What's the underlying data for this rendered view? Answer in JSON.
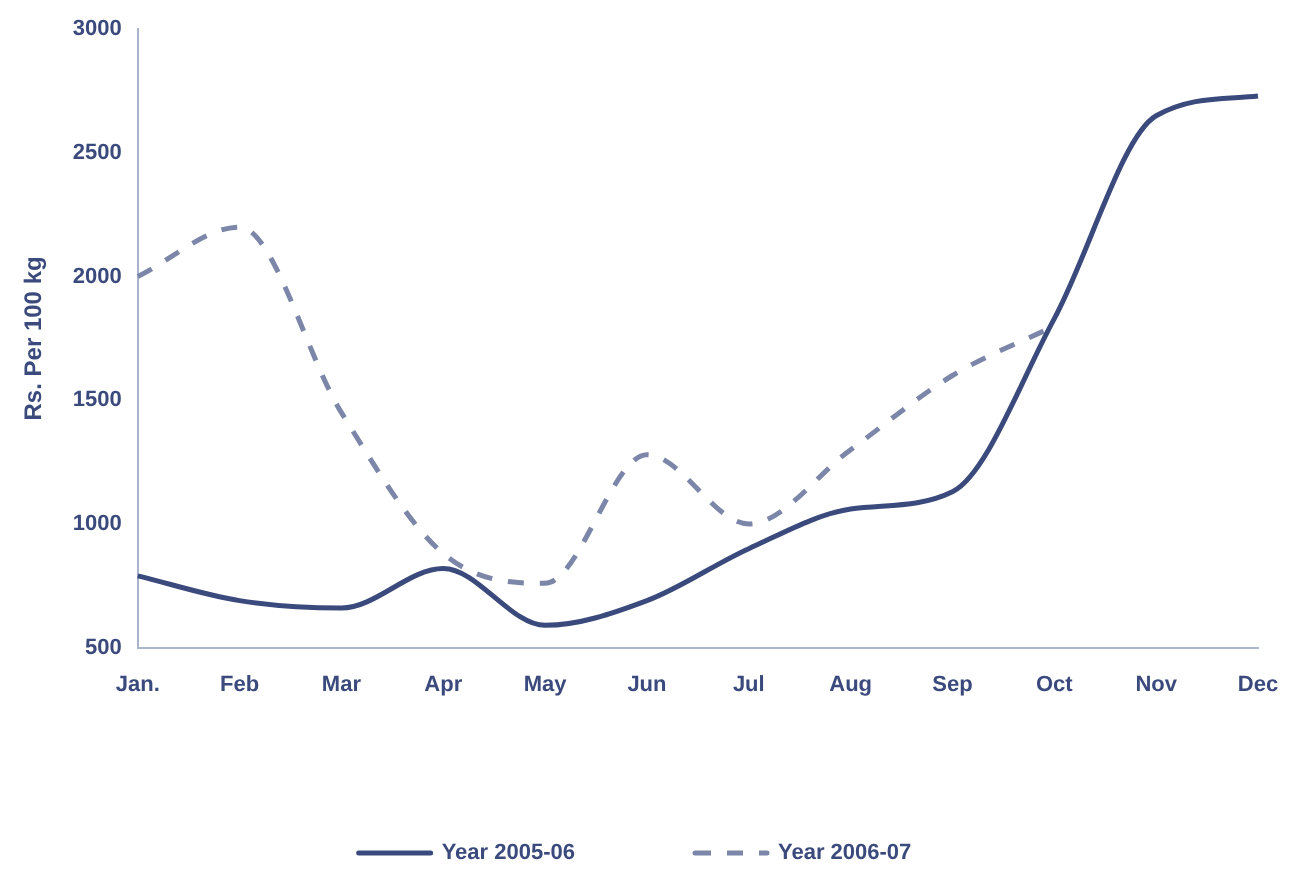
{
  "chart_data": {
    "type": "line",
    "ylabel": "Rs. Per 100 kg",
    "categories": [
      "Jan.",
      "Feb",
      "Mar",
      "Apr",
      "May",
      "Jun",
      "Jul",
      "Aug",
      "Sep",
      "Oct",
      "Nov",
      "Dec"
    ],
    "series": [
      {
        "name": "Year 2005-06",
        "color": "#3b4a7c",
        "line_style": "solid",
        "values": [
          790,
          690,
          660,
          820,
          590,
          690,
          900,
          1060,
          1130,
          1830,
          2650,
          2730
        ]
      },
      {
        "name": "Year 2006-07",
        "color": "#7c86a8",
        "line_style": "dashed",
        "values": [
          2000,
          2200,
          1450,
          880,
          760,
          1280,
          1000,
          1300,
          1600,
          1800,
          null,
          null
        ]
      }
    ],
    "ylim": [
      500,
      3000
    ],
    "yticks": [
      500,
      1000,
      1500,
      2000,
      2500,
      3000
    ],
    "legend": "bottom"
  }
}
